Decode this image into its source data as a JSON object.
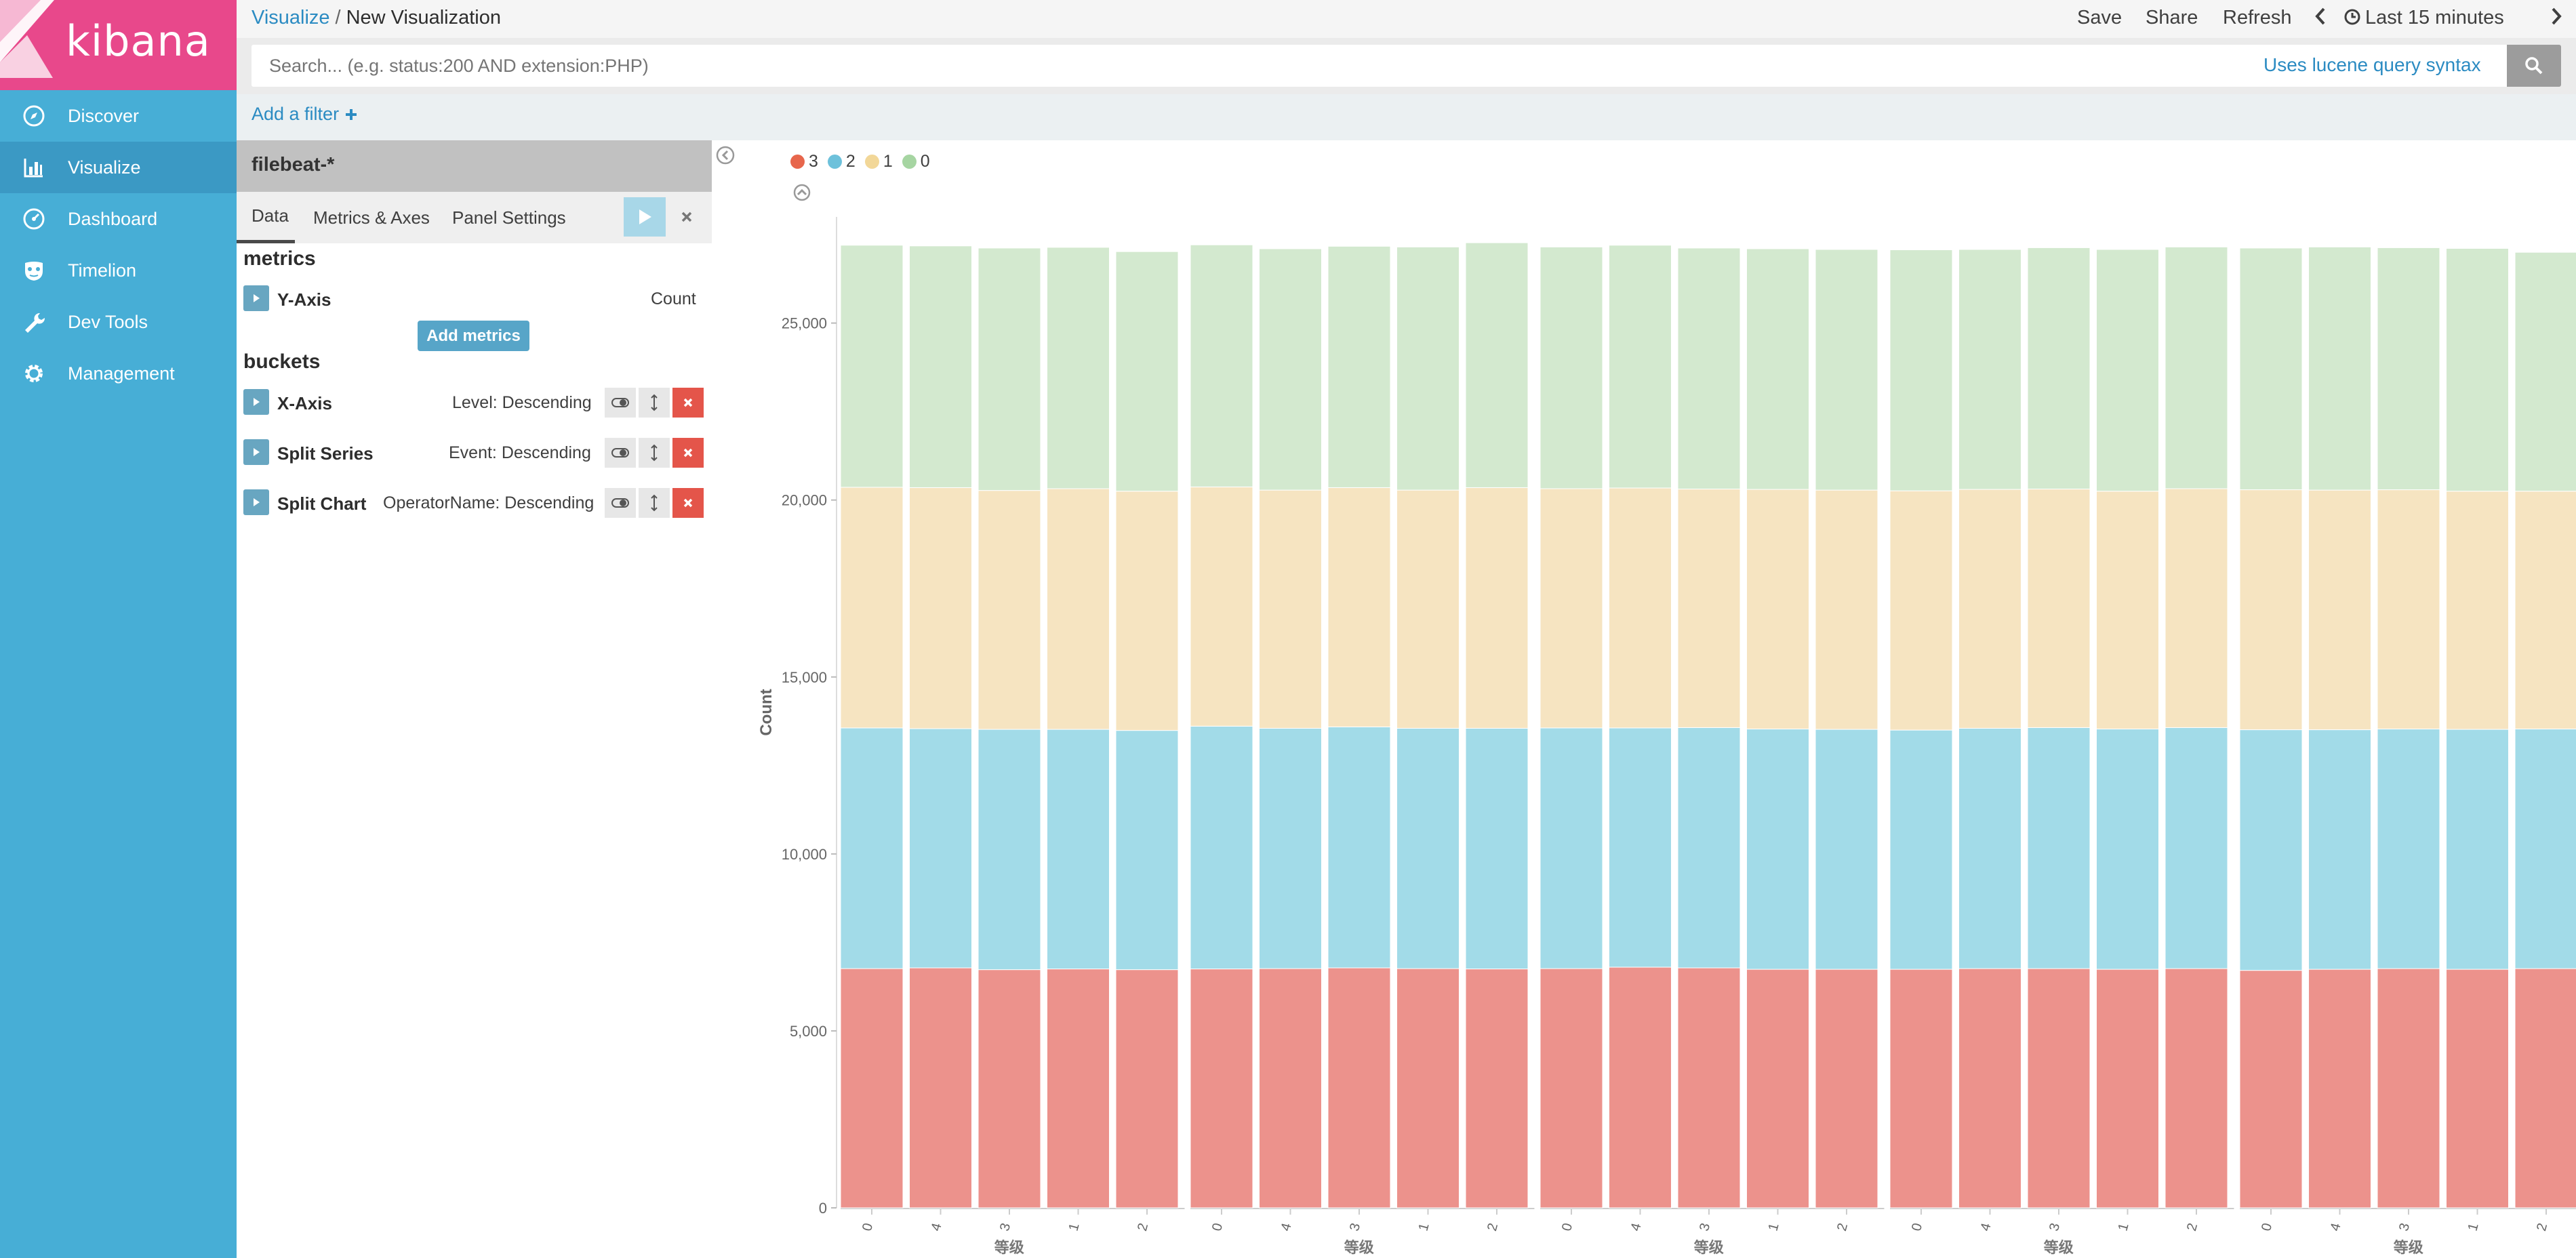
{
  "app": {
    "logo_text": "kibana"
  },
  "nav": {
    "items": [
      {
        "label": "Discover",
        "icon": "compass-icon",
        "active": false
      },
      {
        "label": "Visualize",
        "icon": "bar-chart-icon",
        "active": true
      },
      {
        "label": "Dashboard",
        "icon": "gauge-icon",
        "active": false
      },
      {
        "label": "Timelion",
        "icon": "timelion-mask-icon",
        "active": false
      },
      {
        "label": "Dev Tools",
        "icon": "wrench-icon",
        "active": false
      },
      {
        "label": "Management",
        "icon": "gear-icon",
        "active": false
      }
    ]
  },
  "breadcrumb": {
    "parent": "Visualize",
    "separator": "/",
    "current": "New Visualization"
  },
  "top_actions": {
    "save": "Save",
    "share": "Share",
    "refresh": "Refresh",
    "time_range": "Last 15 minutes"
  },
  "query": {
    "placeholder": "Search... (e.g. status:200 AND extension:PHP)",
    "value": "",
    "syntax_hint": "Uses lucene query syntax"
  },
  "filter": {
    "add_label": "Add a filter"
  },
  "editor": {
    "index_pattern": "filebeat-*",
    "tabs": [
      "Data",
      "Metrics & Axes",
      "Panel Settings"
    ],
    "active_tab": "Data",
    "metrics_title": "metrics",
    "metrics": [
      {
        "name": "Y-Axis",
        "value": "Count"
      }
    ],
    "add_metrics_label": "Add metrics",
    "buckets_title": "buckets",
    "buckets": [
      {
        "name": "X-Axis",
        "value": "Level: Descending"
      },
      {
        "name": "Split Series",
        "value": "Event: Descending"
      },
      {
        "name": "Split Chart",
        "value": "OperatorName: Descending"
      }
    ]
  },
  "colors": {
    "brand": "#e8488b",
    "sidebar": "#47aed6",
    "series_3": "#e7664c",
    "series_2": "#6dc1db",
    "series_1": "#f2d798",
    "series_0": "#a6d5a2"
  },
  "chart_data": {
    "type": "bar",
    "stacked": true,
    "ylabel": "Count",
    "xlabel": "等级",
    "ylim": [
      0,
      28000
    ],
    "yticks": [
      "0",
      "5,000",
      "10,000",
      "15,000",
      "20,000",
      "25,000"
    ],
    "legend": [
      "3",
      "2",
      "1",
      "0"
    ],
    "legend_position": "top-left",
    "panels": [
      {
        "categories": [
          "0",
          "4",
          "3",
          "1",
          "2"
        ],
        "series": [
          {
            "name": "3",
            "color": "#ec928c",
            "values": [
              6760,
              6780,
              6730,
              6750,
              6730
            ]
          },
          {
            "name": "2",
            "color": "#a2dbe8",
            "values": [
              6800,
              6760,
              6790,
              6770,
              6760
            ]
          },
          {
            "name": "1",
            "color": "#f6e4c1",
            "values": [
              6800,
              6810,
              6750,
              6800,
              6760
            ]
          },
          {
            "name": "0",
            "color": "#d3e9cf",
            "values": [
              6840,
              6830,
              6850,
              6820,
              6770
            ]
          }
        ]
      },
      {
        "categories": [
          "0",
          "4",
          "3",
          "1",
          "2"
        ],
        "series": [
          {
            "name": "3",
            "color": "#ec928c",
            "values": [
              6750,
              6760,
              6780,
              6760,
              6750
            ]
          },
          {
            "name": "2",
            "color": "#a2dbe8",
            "values": [
              6860,
              6790,
              6810,
              6790,
              6800
            ]
          },
          {
            "name": "1",
            "color": "#f6e4c1",
            "values": [
              6760,
              6730,
              6760,
              6730,
              6800
            ]
          },
          {
            "name": "0",
            "color": "#d3e9cf",
            "values": [
              6840,
              6820,
              6820,
              6870,
              6920
            ]
          }
        ]
      },
      {
        "categories": [
          "0",
          "4",
          "3",
          "1",
          "2"
        ],
        "series": [
          {
            "name": "3",
            "color": "#ec928c",
            "values": [
              6760,
              6800,
              6780,
              6740,
              6740
            ]
          },
          {
            "name": "2",
            "color": "#a2dbe8",
            "values": [
              6800,
              6760,
              6790,
              6790,
              6780
            ]
          },
          {
            "name": "1",
            "color": "#f6e4c1",
            "values": [
              6760,
              6780,
              6740,
              6770,
              6760
            ]
          },
          {
            "name": "0",
            "color": "#d3e9cf",
            "values": [
              6830,
              6860,
              6810,
              6800,
              6800
            ]
          }
        ]
      },
      {
        "categories": [
          "0",
          "4",
          "3",
          "1",
          "2"
        ],
        "series": [
          {
            "name": "3",
            "color": "#ec928c",
            "values": [
              6740,
              6760,
              6760,
              6740,
              6760
            ]
          },
          {
            "name": "2",
            "color": "#a2dbe8",
            "values": [
              6760,
              6790,
              6810,
              6790,
              6810
            ]
          },
          {
            "name": "1",
            "color": "#f6e4c1",
            "values": [
              6760,
              6750,
              6740,
              6720,
              6750
            ]
          },
          {
            "name": "0",
            "color": "#d3e9cf",
            "values": [
              6810,
              6780,
              6820,
              6830,
              6830
            ]
          }
        ]
      },
      {
        "categories": [
          "0",
          "4",
          "3",
          "1",
          "2"
        ],
        "series": [
          {
            "name": "3",
            "color": "#ec928c",
            "values": [
              6710,
              6740,
              6760,
              6740,
              6760
            ]
          },
          {
            "name": "2",
            "color": "#a2dbe8",
            "values": [
              6800,
              6770,
              6770,
              6780,
              6770
            ]
          },
          {
            "name": "1",
            "color": "#f6e4c1",
            "values": [
              6780,
              6770,
              6760,
              6730,
              6720
            ]
          },
          {
            "name": "0",
            "color": "#d3e9cf",
            "values": [
              6830,
              6870,
              6840,
              6860,
              6750
            ]
          }
        ]
      }
    ]
  }
}
